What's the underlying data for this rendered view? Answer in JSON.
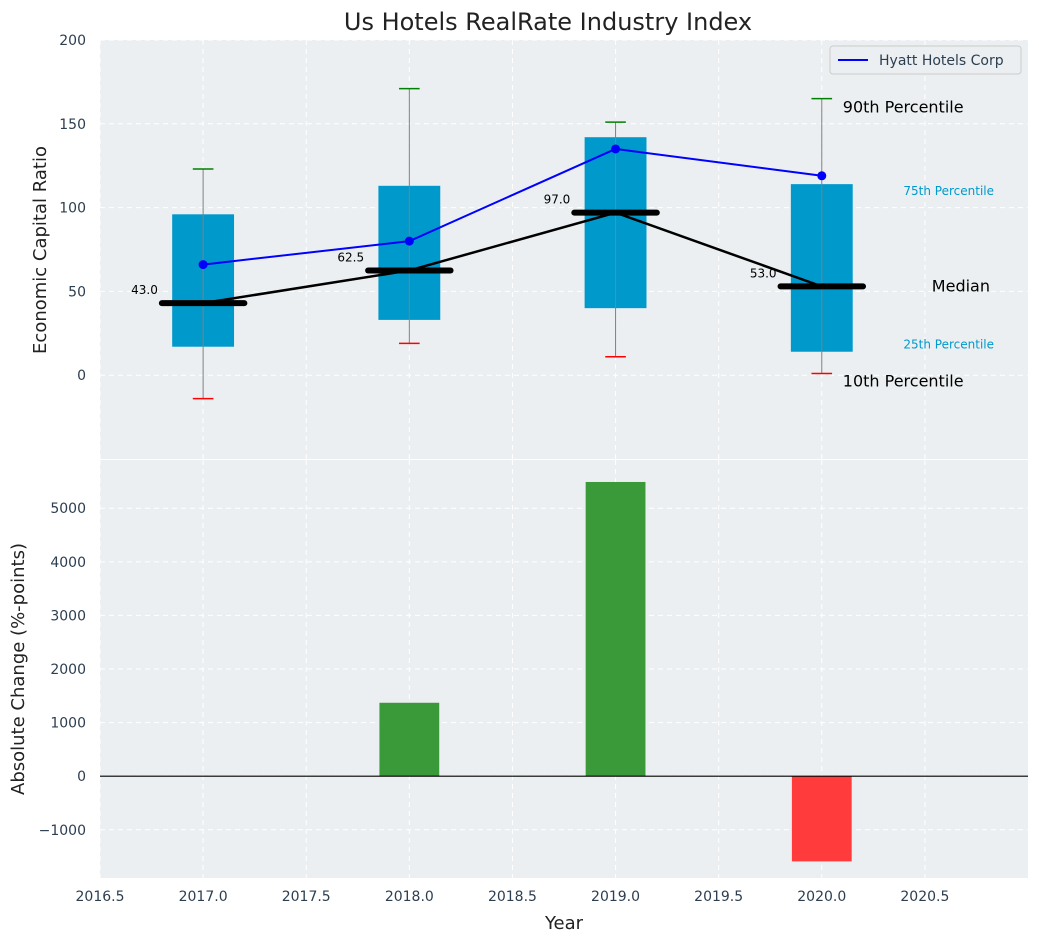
{
  "chart_data": [
    {
      "type": "box",
      "title": "Us Hotels RealRate Industry Index",
      "ylabel": "Economic Capital Ratio",
      "ylim": [
        -50,
        200
      ],
      "yticks": [
        0,
        50,
        100,
        150,
        200
      ],
      "grid": true,
      "legend": {
        "placement": "top-right",
        "entries": [
          "Hyatt Hotels Corp"
        ]
      },
      "categories": [
        2017,
        2018,
        2019,
        2020
      ],
      "p10": [
        -14,
        19,
        11,
        1
      ],
      "p25": [
        17,
        33,
        40,
        14
      ],
      "median": [
        43.0,
        62.5,
        97.0,
        53.0
      ],
      "p75": [
        96,
        113,
        142,
        114
      ],
      "p90": [
        123,
        171,
        151,
        165
      ],
      "median_labels": [
        "43.0",
        "62.5",
        "97.0",
        "53.0"
      ],
      "series": [
        {
          "name": "Hyatt Hotels Corp",
          "values": [
            66,
            80,
            135,
            119
          ],
          "color": "#0000ff"
        }
      ],
      "annotations": {
        "p90": "90th Percentile",
        "p75": "75th Percentile",
        "median": "Median",
        "p25": "25th Percentile",
        "p10": "10th Percentile"
      },
      "colors": {
        "box": "#0099cc",
        "median": "#000000",
        "p90_cap": "#008000",
        "p10_cap": "#ff0000",
        "whisker": "#808080",
        "background": "#ebeff1"
      }
    },
    {
      "type": "bar",
      "xlabel": "Year",
      "ylabel": "Absolute Change (%-points)",
      "ylim": [
        -1900,
        5900
      ],
      "yticks": [
        -1000,
        0,
        1000,
        2000,
        3000,
        4000,
        5000
      ],
      "ytick_labels": [
        "−1000",
        "0",
        "1000",
        "2000",
        "3000",
        "4000",
        "5000"
      ],
      "xlim": [
        2016.5,
        2021.0
      ],
      "xticks": [
        2016.5,
        2017.0,
        2017.5,
        2018.0,
        2018.5,
        2019.0,
        2019.5,
        2020.0,
        2020.5
      ],
      "xtick_labels": [
        "2016.5",
        "2017.0",
        "2017.5",
        "2018.0",
        "2018.5",
        "2019.0",
        "2019.5",
        "2020.0",
        "2020.5"
      ],
      "grid": true,
      "categories": [
        2018,
        2019,
        2020
      ],
      "values": [
        1370,
        5490,
        -1590
      ],
      "colors": {
        "positive": "#3a9a3a",
        "negative": "#ff3b3b",
        "background": "#ebeff1"
      }
    }
  ]
}
